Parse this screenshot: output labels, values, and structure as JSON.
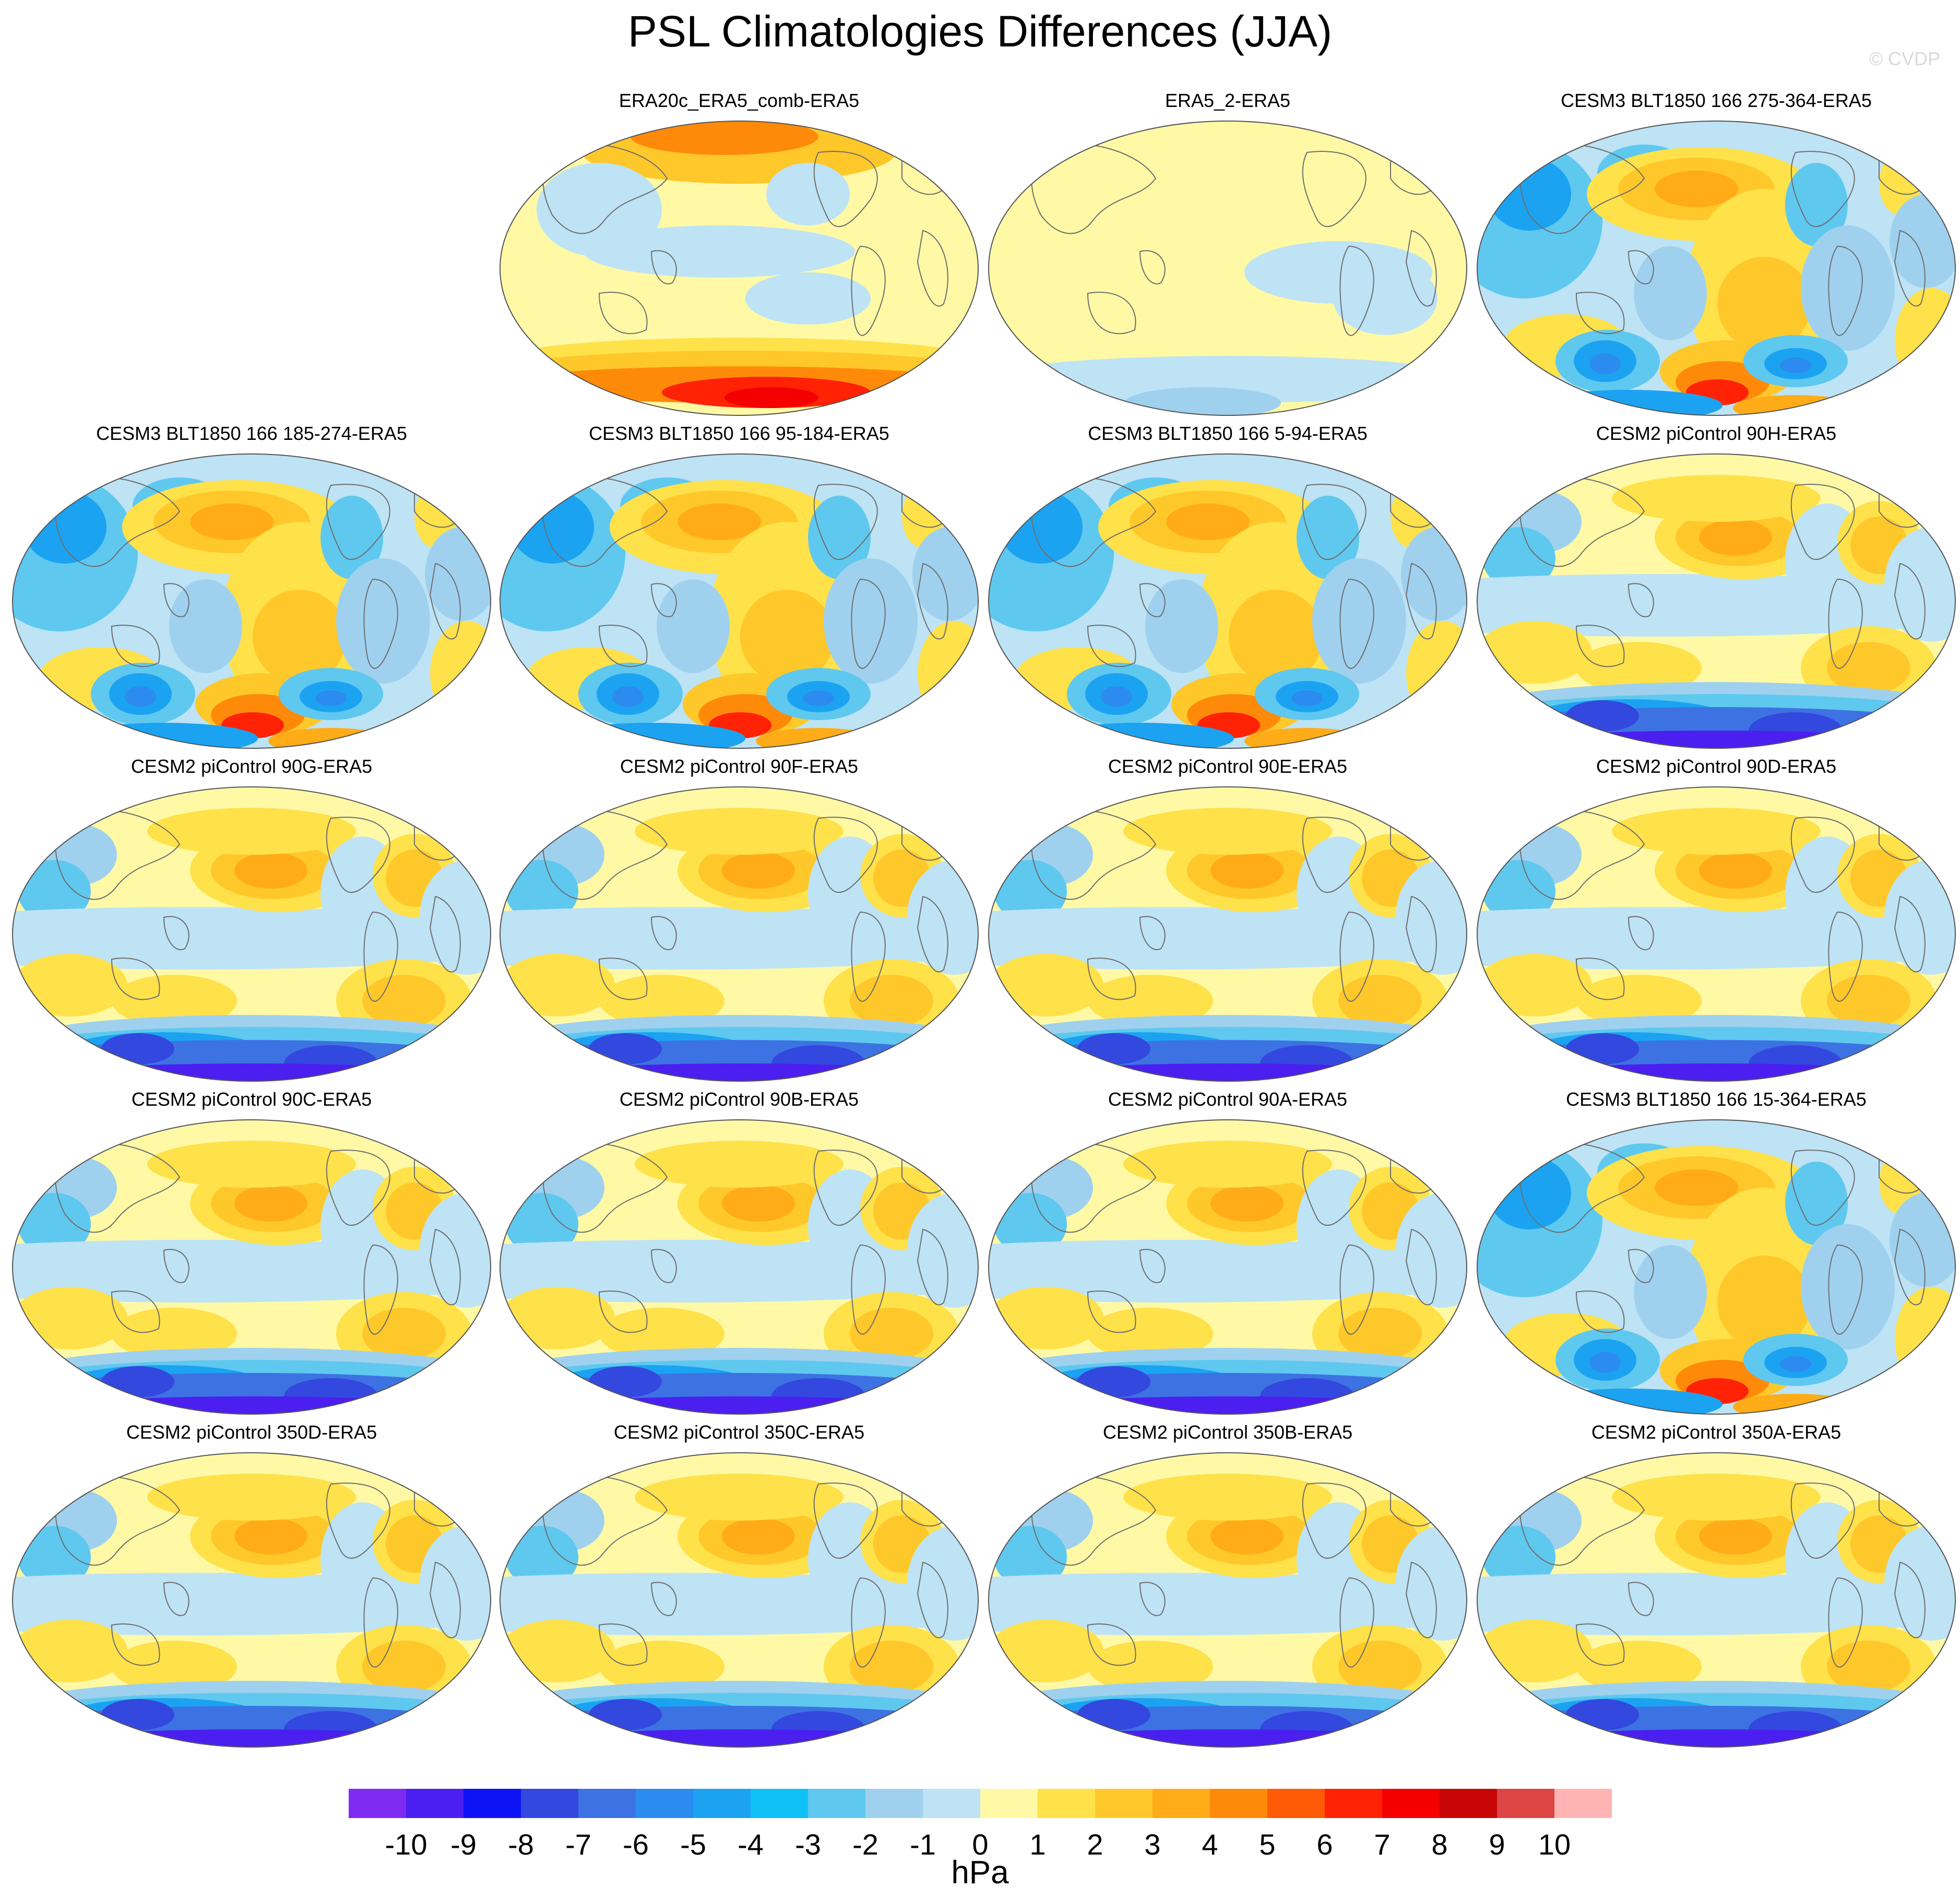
{
  "title": "PSL Climatologies Differences (JJA)",
  "watermark": "© CVDP",
  "panels": [
    {
      "title": "ERA20c_ERA5_comb-ERA5",
      "pattern": "reanalysis_warm"
    },
    {
      "title": "ERA5_2-ERA5",
      "pattern": "reanalysis_flat"
    },
    {
      "title": "CESM3 BLT1850 166 275-364-ERA5",
      "pattern": "cesm3"
    },
    {
      "title": "CESM3 BLT1850 166 185-274-ERA5",
      "pattern": "cesm3"
    },
    {
      "title": "CESM3 BLT1850 166 95-184-ERA5",
      "pattern": "cesm3"
    },
    {
      "title": "CESM3 BLT1850 166 5-94-ERA5",
      "pattern": "cesm3"
    },
    {
      "title": "CESM2 piControl 90H-ERA5",
      "pattern": "cesm2"
    },
    {
      "title": "CESM2 piControl 90G-ERA5",
      "pattern": "cesm2"
    },
    {
      "title": "CESM2 piControl 90F-ERA5",
      "pattern": "cesm2"
    },
    {
      "title": "CESM2 piControl 90E-ERA5",
      "pattern": "cesm2"
    },
    {
      "title": "CESM2 piControl 90D-ERA5",
      "pattern": "cesm2"
    },
    {
      "title": "CESM2 piControl 90C-ERA5",
      "pattern": "cesm2"
    },
    {
      "title": "CESM2 piControl 90B-ERA5",
      "pattern": "cesm2"
    },
    {
      "title": "CESM2 piControl 90A-ERA5",
      "pattern": "cesm2"
    },
    {
      "title": "CESM3 BLT1850 166 15-364-ERA5",
      "pattern": "cesm3"
    },
    {
      "title": "CESM2 piControl 350D-ERA5",
      "pattern": "cesm2"
    },
    {
      "title": "CESM2 piControl 350C-ERA5",
      "pattern": "cesm2"
    },
    {
      "title": "CESM2 piControl 350B-ERA5",
      "pattern": "cesm2"
    },
    {
      "title": "CESM2 piControl 350A-ERA5",
      "pattern": "cesm2"
    }
  ],
  "chart_data": {
    "type": "heatmap",
    "title": "PSL Climatologies Differences (JJA)",
    "projection": "robinson",
    "units": "hPa",
    "colorbar": {
      "ticks": [
        "-10",
        "-9",
        "-8",
        "-7",
        "-6",
        "-5",
        "-4",
        "-3",
        "-2",
        "-1",
        "0",
        "1",
        "2",
        "3",
        "4",
        "5",
        "6",
        "7",
        "8",
        "9",
        "10"
      ],
      "colors": [
        "#7f2af0",
        "#4a1ff0",
        "#0e13f5",
        "#3348de",
        "#3d72e3",
        "#2c8bef",
        "#1ba3f2",
        "#10c1f8",
        "#5fc8ef",
        "#9fd1ef",
        "#bde3f5",
        "#fff9a6",
        "#ffe14a",
        "#ffc82a",
        "#ffac18",
        "#ff8a0a",
        "#ff5b06",
        "#ff2205",
        "#f50000",
        "#c80505",
        "#dd4545",
        "#ffb3b3"
      ]
    }
  }
}
